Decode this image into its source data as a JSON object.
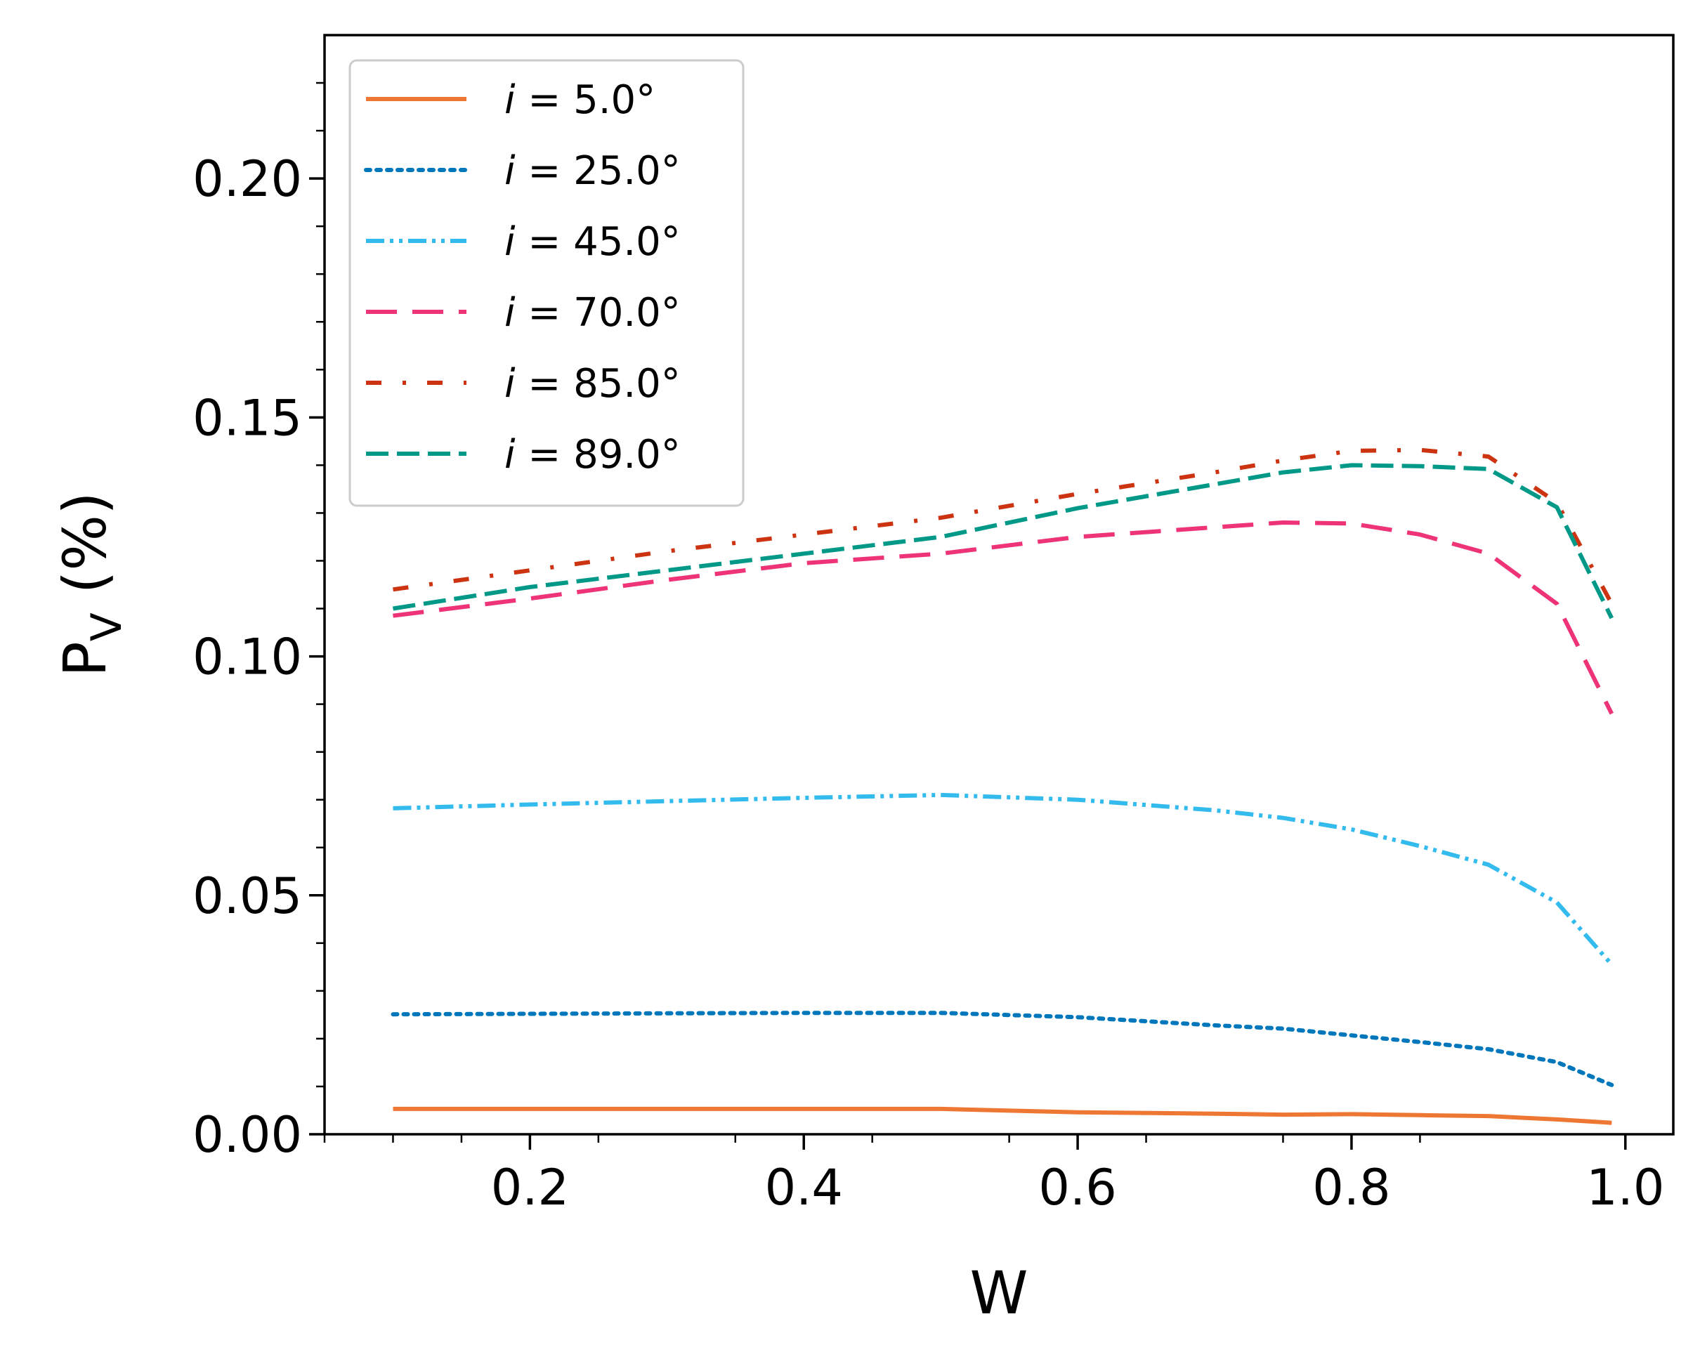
{
  "chart_data": {
    "type": "line",
    "xlabel": "W",
    "ylabel": {
      "base": "P",
      "subscript": "V",
      "suffix": " (%)"
    },
    "xlim": [
      0.05,
      1.035
    ],
    "ylim": [
      0.0,
      0.23
    ],
    "xticks": [
      {
        "value": 0.2,
        "label": "0.2"
      },
      {
        "value": 0.4,
        "label": "0.4"
      },
      {
        "value": 0.6,
        "label": "0.6"
      },
      {
        "value": 0.8,
        "label": "0.8"
      },
      {
        "value": 1.0,
        "label": "1.0"
      }
    ],
    "yticks": [
      {
        "value": 0.0,
        "label": "0.00"
      },
      {
        "value": 0.05,
        "label": "0.05"
      },
      {
        "value": 0.1,
        "label": "0.10"
      },
      {
        "value": 0.15,
        "label": "0.15"
      },
      {
        "value": 0.2,
        "label": "0.20"
      }
    ],
    "x": [
      0.1,
      0.2,
      0.3,
      0.4,
      0.5,
      0.6,
      0.7,
      0.75,
      0.8,
      0.85,
      0.9,
      0.95,
      0.99
    ],
    "series": [
      {
        "name": "i = 5.0°",
        "var": "i",
        "rest": " = 5.0°",
        "color": "#EE7733",
        "dash": "solid",
        "values": [
          0.0053,
          0.0053,
          0.0053,
          0.0053,
          0.0053,
          0.0046,
          0.0043,
          0.0041,
          0.0042,
          0.004,
          0.0038,
          0.0031,
          0.0024
        ]
      },
      {
        "name": "i = 25.0°",
        "var": "i",
        "rest": " = 25.0°",
        "color": "#0077BB",
        "dash": "dotted",
        "values": [
          0.0251,
          0.0252,
          0.0253,
          0.0254,
          0.0254,
          0.0245,
          0.0228,
          0.0221,
          0.0207,
          0.0193,
          0.0178,
          0.0151,
          0.0103
        ]
      },
      {
        "name": "i = 45.0°",
        "var": "i",
        "rest": " = 45.0°",
        "color": "#33BBEE",
        "dash": "dashdotdot",
        "values": [
          0.0682,
          0.069,
          0.0697,
          0.0704,
          0.071,
          0.07,
          0.0678,
          0.0662,
          0.0638,
          0.0603,
          0.0564,
          0.0485,
          0.0355
        ]
      },
      {
        "name": "i = 70.0°",
        "var": "i",
        "rest": " = 70.0°",
        "color": "#EE3377",
        "dash": "longdash",
        "values": [
          0.1085,
          0.1121,
          0.116,
          0.1195,
          0.1215,
          0.125,
          0.127,
          0.128,
          0.1278,
          0.1255,
          0.1215,
          0.111,
          0.088
        ]
      },
      {
        "name": "i = 85.0°",
        "var": "i",
        "rest": " = 85.0°",
        "color": "#CC3311",
        "dash": "sparsedashdot",
        "values": [
          0.114,
          0.118,
          0.122,
          0.1255,
          0.129,
          0.134,
          0.1385,
          0.141,
          0.143,
          0.1432,
          0.1418,
          0.1322,
          0.111
        ]
      },
      {
        "name": "i = 89.0°",
        "var": "i",
        "rest": " = 89.0°",
        "color": "#009988",
        "dash": "dashed",
        "values": [
          0.11,
          0.1145,
          0.118,
          0.1215,
          0.125,
          0.131,
          0.136,
          0.1385,
          0.14,
          0.1398,
          0.1392,
          0.1312,
          0.108
        ]
      }
    ],
    "legend_location": "upper left",
    "grid": false
  }
}
